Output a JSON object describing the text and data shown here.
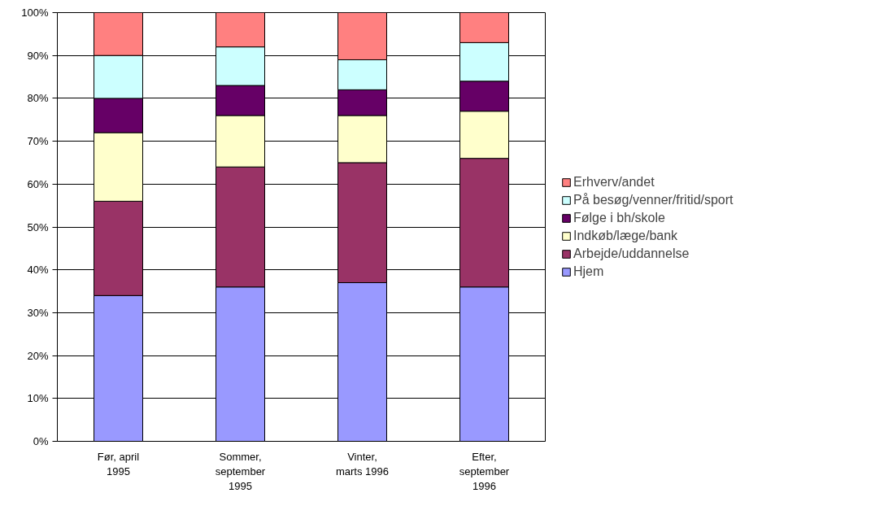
{
  "chart_data": {
    "type": "bar",
    "stacked": true,
    "categories": [
      "Før, april 1995",
      "Sommer, september 1995",
      "Vinter, marts 1996",
      "Efter, september 1996"
    ],
    "series": [
      {
        "name": "Hjem",
        "color": "#9999ff",
        "values": [
          34,
          36,
          37,
          36
        ]
      },
      {
        "name": "Arbejde/uddannelse",
        "color": "#993366",
        "values": [
          22,
          28,
          28,
          30
        ]
      },
      {
        "name": "Indkøb/læge/bank",
        "color": "#ffffcc",
        "values": [
          16,
          12,
          11,
          11
        ]
      },
      {
        "name": "Følge i bh/skole",
        "color": "#660066",
        "values": [
          8,
          7,
          6,
          7
        ]
      },
      {
        "name": "På besøg/venner/fritid/sport",
        "color": "#ccffff",
        "values": [
          10,
          9,
          7,
          9
        ]
      },
      {
        "name": "Erhverv/andet",
        "color": "#ff8080",
        "values": [
          10,
          8,
          11,
          7
        ]
      }
    ],
    "ylim": [
      0,
      100
    ],
    "yticks": [
      {
        "value": 0,
        "label": "0%"
      },
      {
        "value": 10,
        "label": "10%"
      },
      {
        "value": 20,
        "label": "20%"
      },
      {
        "value": 30,
        "label": "30%"
      },
      {
        "value": 40,
        "label": "40%"
      },
      {
        "value": 50,
        "label": "50%"
      },
      {
        "value": 60,
        "label": "60%"
      },
      {
        "value": 70,
        "label": "70%"
      },
      {
        "value": 80,
        "label": "80%"
      },
      {
        "value": 90,
        "label": "90%"
      },
      {
        "value": 100,
        "label": "100%"
      }
    ],
    "grid": "y",
    "legend": "right"
  }
}
